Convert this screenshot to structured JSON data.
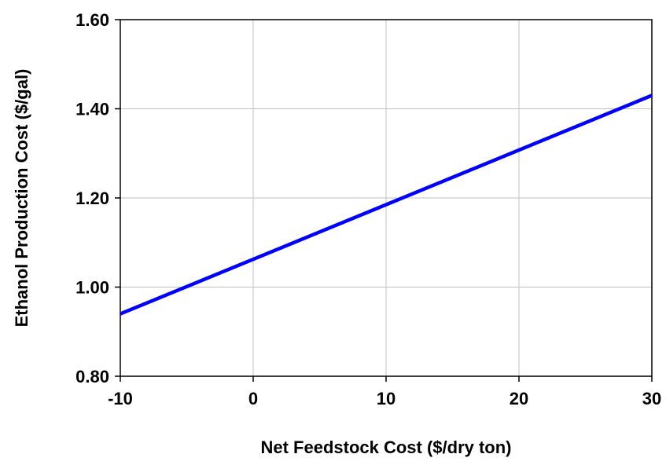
{
  "chart_data": {
    "type": "line",
    "title": "",
    "xlabel": "Net Feedstock Cost ($/dry ton)",
    "ylabel": "Ethanol Production Cost ($/gal)",
    "xlim": [
      -10,
      30
    ],
    "ylim": [
      0.8,
      1.6
    ],
    "x_ticks": [
      -10,
      0,
      10,
      20,
      30
    ],
    "x_tick_labels": [
      "-10",
      "0",
      "10",
      "20",
      "30"
    ],
    "y_ticks": [
      0.8,
      1.0,
      1.2,
      1.4,
      1.6
    ],
    "y_tick_labels": [
      "0.80",
      "1.00",
      "1.20",
      "1.40",
      "1.60"
    ],
    "grid": true,
    "legend": "none",
    "series": [
      {
        "color": "#0000ff",
        "x": [
          -10,
          30
        ],
        "y": [
          0.94,
          1.43
        ]
      }
    ]
  }
}
